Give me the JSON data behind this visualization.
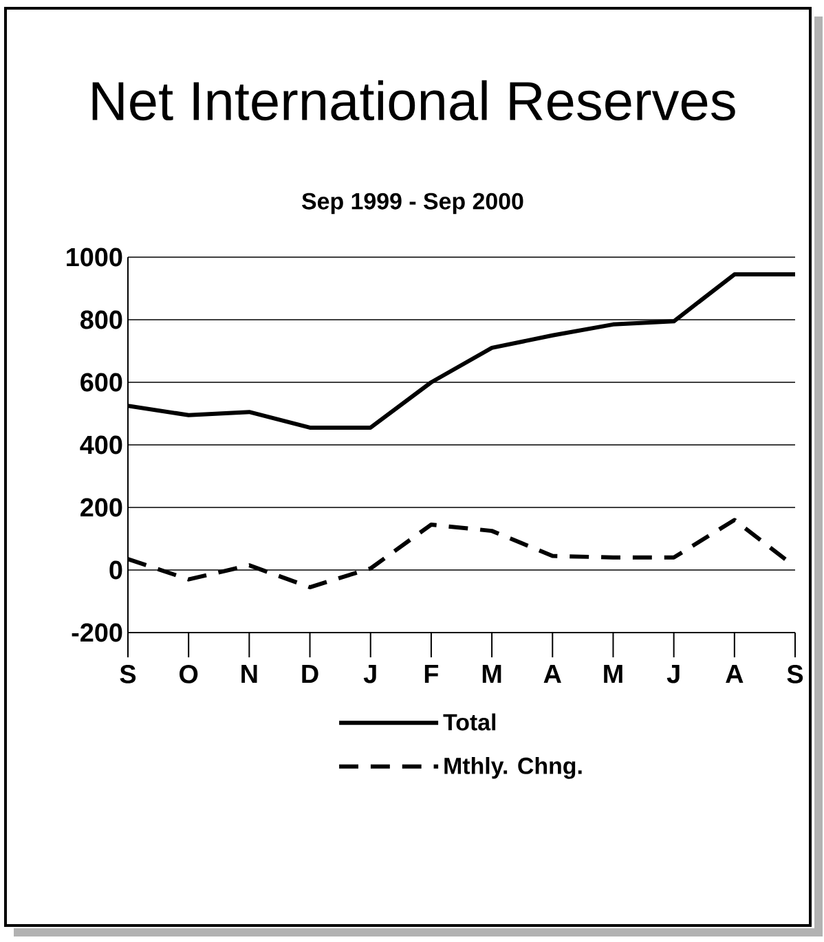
{
  "chart_data": {
    "type": "line",
    "title": "Net International Reserves",
    "subtitle": "Sep 1999 - Sep 2000",
    "categories": [
      "S",
      "O",
      "N",
      "D",
      "J",
      "F",
      "M",
      "A",
      "M",
      "J",
      "A",
      "S"
    ],
    "series": [
      {
        "name": "Total",
        "color": "#000000",
        "line_style": "solid",
        "values": [
          525,
          495,
          505,
          455,
          455,
          600,
          710,
          750,
          785,
          795,
          945,
          945
        ]
      },
      {
        "name": "Mthly. Chng.",
        "color": "#000000",
        "line_style": "dashed",
        "values": [
          35,
          -30,
          15,
          -55,
          5,
          145,
          125,
          45,
          40,
          40,
          160,
          10
        ]
      }
    ],
    "ylim": [
      -200,
      1000
    ],
    "yticks": [
      -200,
      0,
      200,
      400,
      600,
      800,
      1000
    ],
    "grid": "y",
    "legend": "bottom",
    "marker": "none"
  }
}
